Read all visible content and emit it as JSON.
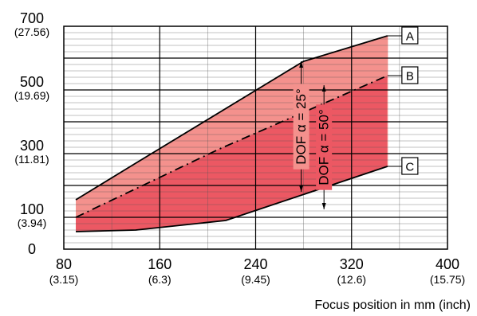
{
  "chart_data": {
    "type": "area",
    "title": "",
    "xlabel": "Focus position in mm (inch)",
    "ylabel": "",
    "xlim": [
      80,
      400
    ],
    "ylim": [
      0,
      700
    ],
    "grid": true,
    "x_ticks": [
      {
        "value": 80,
        "label": "80",
        "sublabel": "(3.15)"
      },
      {
        "value": 160,
        "label": "160",
        "sublabel": "(6.3)"
      },
      {
        "value": 240,
        "label": "240",
        "sublabel": "(9.45)"
      },
      {
        "value": 320,
        "label": "320",
        "sublabel": "(12.6)"
      },
      {
        "value": 400,
        "label": "400",
        "sublabel": "(15.75)"
      }
    ],
    "y_ticks": [
      {
        "value": 0,
        "label": "0",
        "sublabel": ""
      },
      {
        "value": 100,
        "label": "100",
        "sublabel": "(3.94)"
      },
      {
        "value": 300,
        "label": "300",
        "sublabel": "(11.81)"
      },
      {
        "value": 500,
        "label": "500",
        "sublabel": "(19.69)"
      },
      {
        "value": 700,
        "label": "700",
        "sublabel": "(27.56)"
      }
    ],
    "series": [
      {
        "name": "A",
        "line": "solid",
        "x": [
          90,
          140,
          280,
          350
        ],
        "y": [
          155,
          270,
          590,
          670
        ]
      },
      {
        "name": "B",
        "line": "dashdot",
        "x": [
          90,
          210,
          350
        ],
        "y": [
          100,
          315,
          545
        ]
      },
      {
        "name": "C",
        "line": "solid",
        "x": [
          90,
          140,
          215,
          350
        ],
        "y": [
          55,
          60,
          90,
          260
        ]
      }
    ],
    "annotations": [
      {
        "text": "DOF α = 25°",
        "x": 278,
        "y_from": 180,
        "y_to": 590,
        "series_top": "A",
        "series_bottom": "C"
      },
      {
        "text": "DOF α = 50°",
        "x": 297,
        "y_from": 125,
        "y_to": 515,
        "series_top": "B",
        "series_bottom": "C"
      }
    ],
    "colors": {
      "band_25": "#f4918d",
      "band_50": "#ec5863",
      "grid": "#000000"
    }
  }
}
